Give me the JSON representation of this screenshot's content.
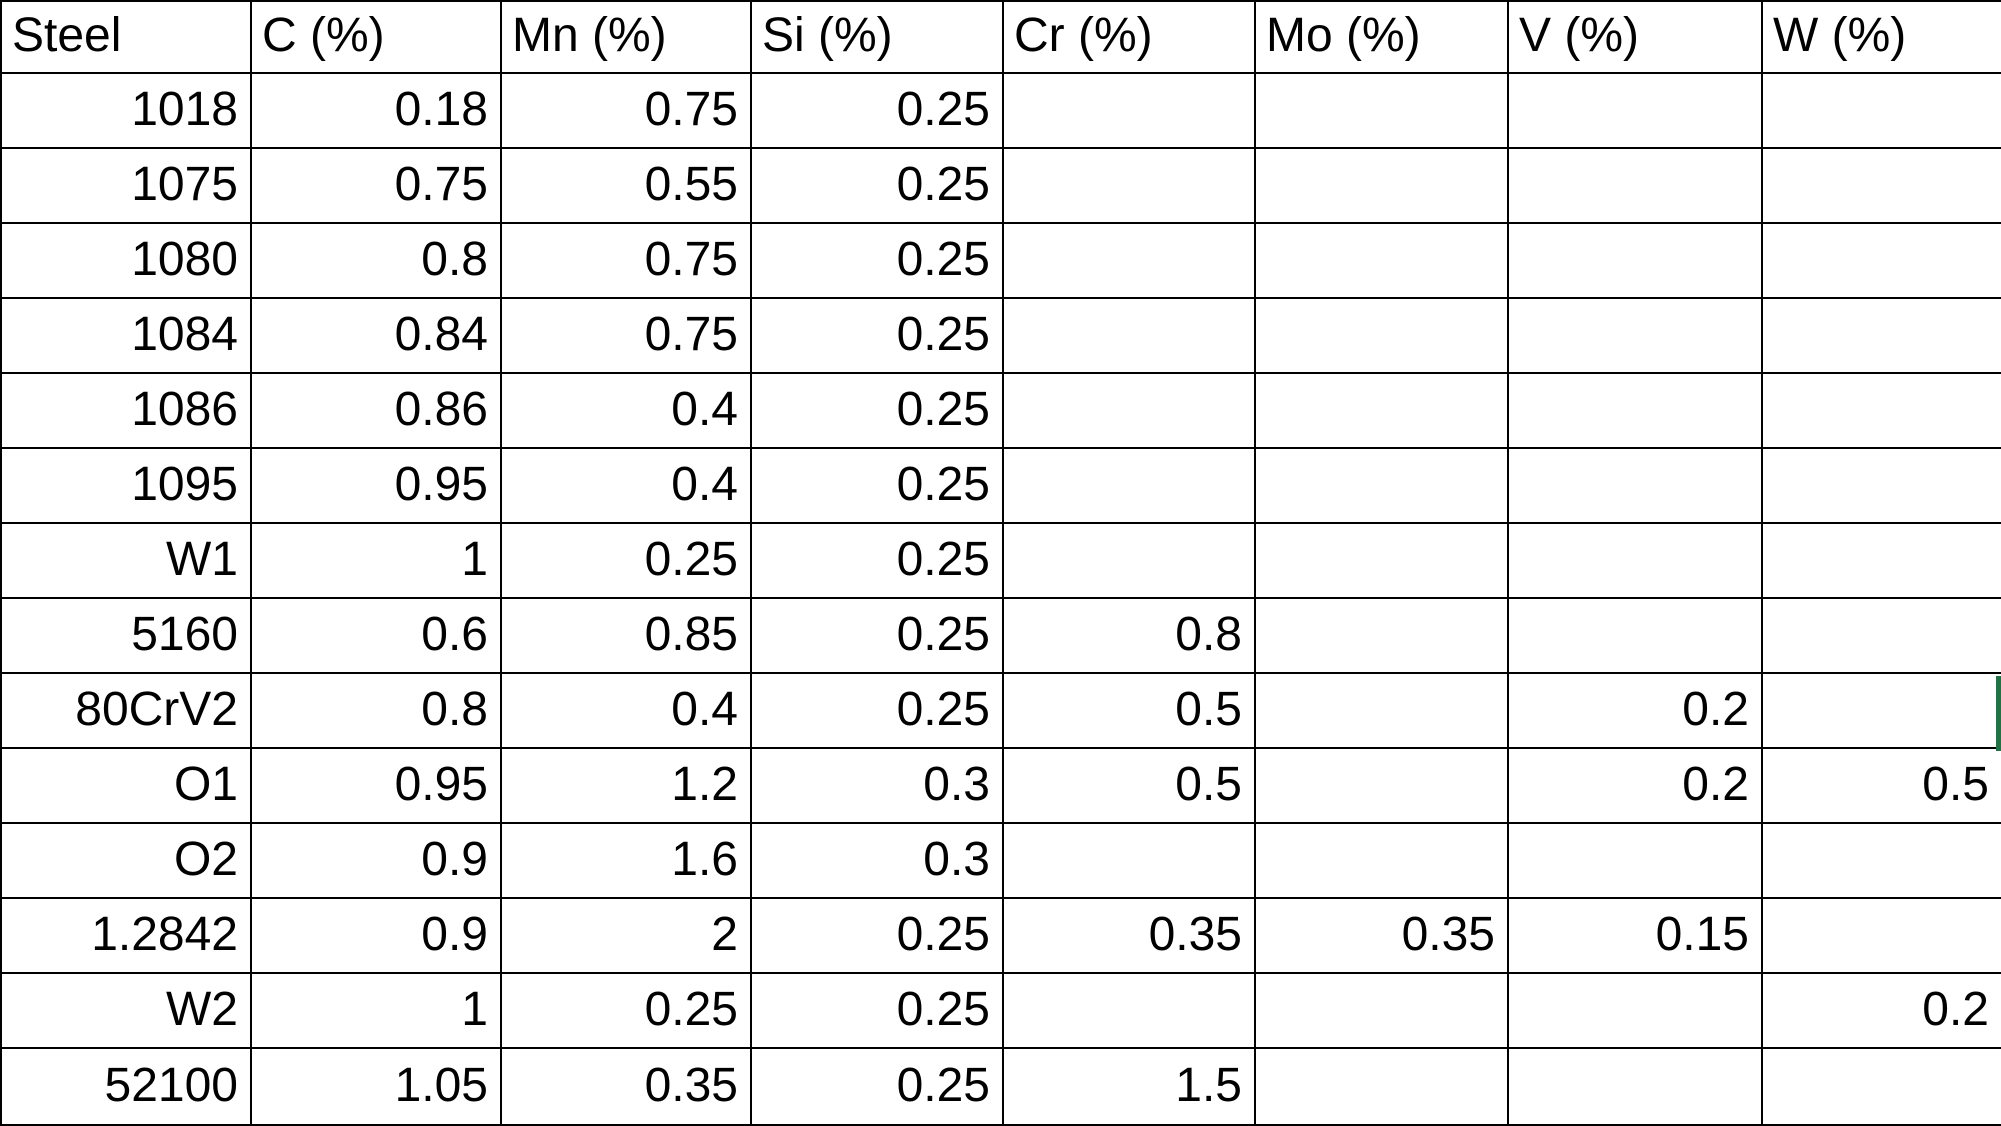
{
  "table": {
    "columns": [
      "Steel",
      "C (%)",
      "Mn (%)",
      "Si (%)",
      "Cr (%)",
      "Mo (%)",
      "V (%)",
      "W (%)"
    ],
    "column_keys": [
      "steel",
      "c",
      "mn",
      "si",
      "cr",
      "mo",
      "v",
      "w"
    ],
    "rows": [
      {
        "steel": "1018",
        "values": [
          "0.18",
          "0.75",
          "0.25",
          "",
          "",
          "",
          ""
        ]
      },
      {
        "steel": "1075",
        "values": [
          "0.75",
          "0.55",
          "0.25",
          "",
          "",
          "",
          ""
        ]
      },
      {
        "steel": "1080",
        "values": [
          "0.8",
          "0.75",
          "0.25",
          "",
          "",
          "",
          ""
        ]
      },
      {
        "steel": "1084",
        "values": [
          "0.84",
          "0.75",
          "0.25",
          "",
          "",
          "",
          ""
        ]
      },
      {
        "steel": "1086",
        "values": [
          "0.86",
          "0.4",
          "0.25",
          "",
          "",
          "",
          ""
        ]
      },
      {
        "steel": "1095",
        "values": [
          "0.95",
          "0.4",
          "0.25",
          "",
          "",
          "",
          ""
        ]
      },
      {
        "steel": "W1",
        "values": [
          "1",
          "0.25",
          "0.25",
          "",
          "",
          "",
          ""
        ]
      },
      {
        "steel": "5160",
        "values": [
          "0.6",
          "0.85",
          "0.25",
          "0.8",
          "",
          "",
          ""
        ]
      },
      {
        "steel": "80CrV2",
        "values": [
          "0.8",
          "0.4",
          "0.25",
          "0.5",
          "",
          "0.2",
          ""
        ]
      },
      {
        "steel": "O1",
        "values": [
          "0.95",
          "1.2",
          "0.3",
          "0.5",
          "",
          "0.2",
          "0.5"
        ]
      },
      {
        "steel": "O2",
        "values": [
          "0.9",
          "1.6",
          "0.3",
          "",
          "",
          "",
          ""
        ]
      },
      {
        "steel": "1.2842",
        "values": [
          "0.9",
          "2",
          "0.25",
          "0.35",
          "0.35",
          "0.15",
          ""
        ]
      },
      {
        "steel": "W2",
        "values": [
          "1",
          "0.25",
          "0.25",
          "",
          "",
          "",
          "0.2"
        ]
      },
      {
        "steel": "52100",
        "values": [
          "1.05",
          "0.35",
          "0.25",
          "1.5",
          "",
          "",
          ""
        ]
      }
    ]
  },
  "selection": {
    "active_row": "80CrV2",
    "edge_color": "#217346"
  },
  "colors": {
    "grid_line": "#000000",
    "background": "#ffffff",
    "text": "#000000"
  }
}
